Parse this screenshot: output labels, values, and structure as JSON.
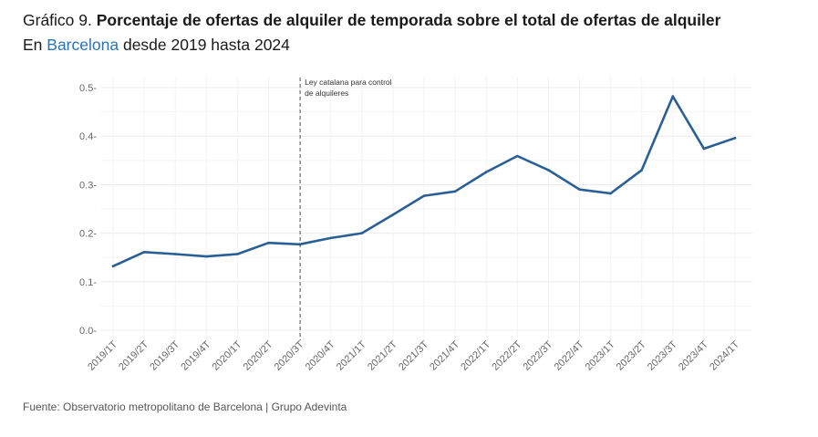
{
  "header": {
    "title_prefix": "Gráfico 9. ",
    "title_bold": "Porcentaje de ofertas de alquiler de temporada sobre el total de ofertas de alquiler",
    "subtitle_pre": "En ",
    "subtitle_city": "Barcelona",
    "subtitle_post": " desde 2019 hasta 2024"
  },
  "colors": {
    "line": "#2a5f96",
    "city": "#2b72b9",
    "grid": "#ececec",
    "marker": "#555555"
  },
  "chart_data": {
    "type": "line",
    "title": "Porcentaje de ofertas de alquiler de temporada sobre el total de ofertas de alquiler",
    "subtitle": "En Barcelona desde 2019 hasta 2024",
    "xlabel": "",
    "ylabel": "",
    "categories": [
      "2019/1T",
      "2019/2T",
      "2019/3T",
      "2019/4T",
      "2020/1T",
      "2020/2T",
      "2020/3T",
      "2020/4T",
      "2021/1T",
      "2021/2T",
      "2021/3T",
      "2021/4T",
      "2022/1T",
      "2022/2T",
      "2022/3T",
      "2022/4T",
      "2023/1T",
      "2023/2T",
      "2023/3T",
      "2023/4T",
      "2024/1T"
    ],
    "series": [
      {
        "name": "Barcelona",
        "values": [
          0.132,
          0.161,
          0.157,
          0.152,
          0.157,
          0.18,
          0.177,
          0.19,
          0.2,
          0.238,
          0.277,
          0.286,
          0.326,
          0.359,
          0.33,
          0.29,
          0.282,
          0.33,
          0.482,
          0.374,
          0.396
        ]
      }
    ],
    "ylim": [
      0,
      0.5
    ],
    "yticks": [
      0.0,
      0.1,
      0.2,
      0.3,
      0.4,
      0.5
    ],
    "ytick_labels": [
      "0.0-",
      "0.1-",
      "0.2-",
      "0.3-",
      "0.4-",
      "0.5-"
    ],
    "grid": true,
    "annotation": {
      "category": "2020/3T",
      "lines": [
        "Ley catalana para control",
        "de alquileres"
      ]
    }
  },
  "footer": {
    "source": "Fuente: Observatorio metropolitano de Barcelona | Grupo Adevinta"
  }
}
